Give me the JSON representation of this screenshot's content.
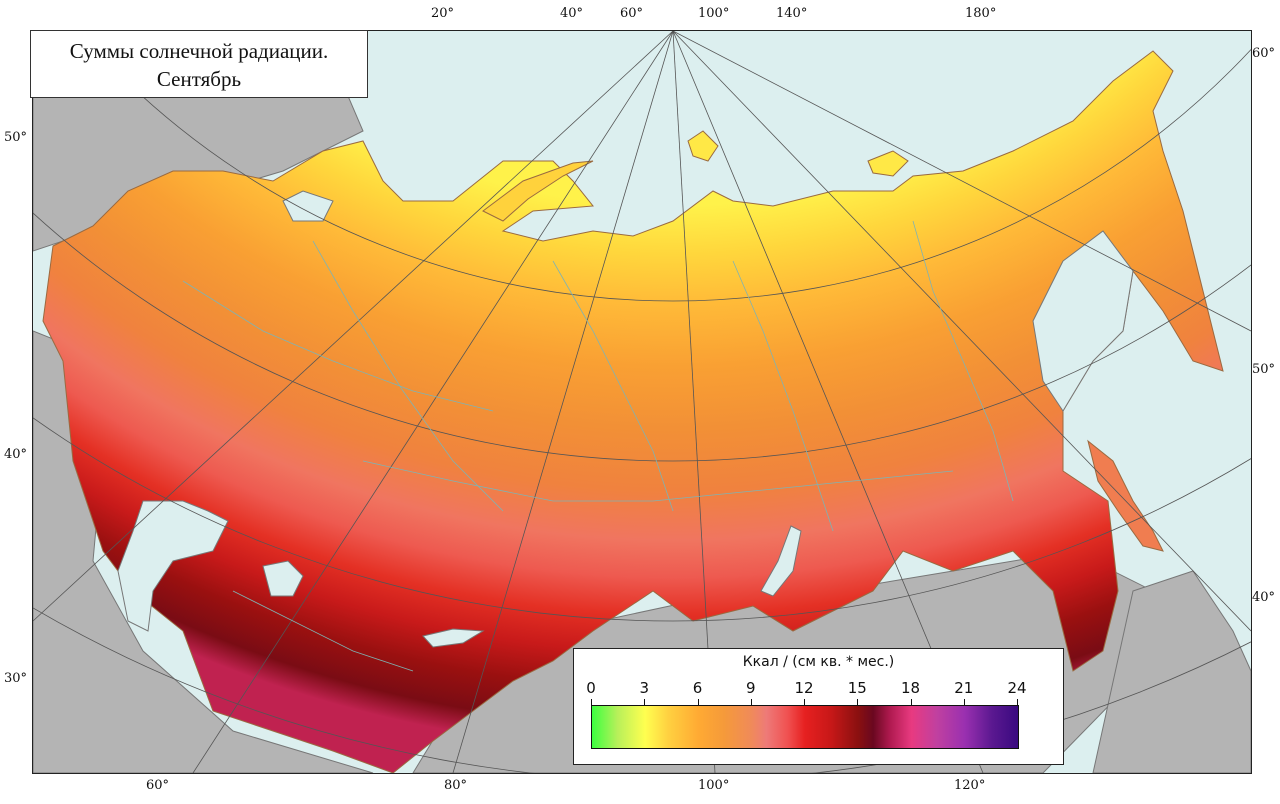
{
  "title": {
    "line1": "Суммы солнечной радиации.",
    "line2": "Сентябрь"
  },
  "legend": {
    "title": "Ккал / (см кв. * мес.)",
    "ticks": [
      "0",
      "3",
      "6",
      "9",
      "12",
      "15",
      "18",
      "21",
      "24"
    ]
  },
  "top_lon_labels": [
    "20°",
    "40°",
    "60°",
    "100°",
    "140°",
    "180°"
  ],
  "bottom_lon_labels": [
    "60°",
    "80°",
    "100°",
    "120°"
  ],
  "left_lat_labels": [
    "50°",
    "40°",
    "30°"
  ],
  "right_lat_labels": [
    "60°",
    "50°",
    "40°"
  ],
  "colors": {
    "sea": "#dcefef",
    "foreign_land": "#b4b4b4",
    "graticule": "#555555"
  }
}
